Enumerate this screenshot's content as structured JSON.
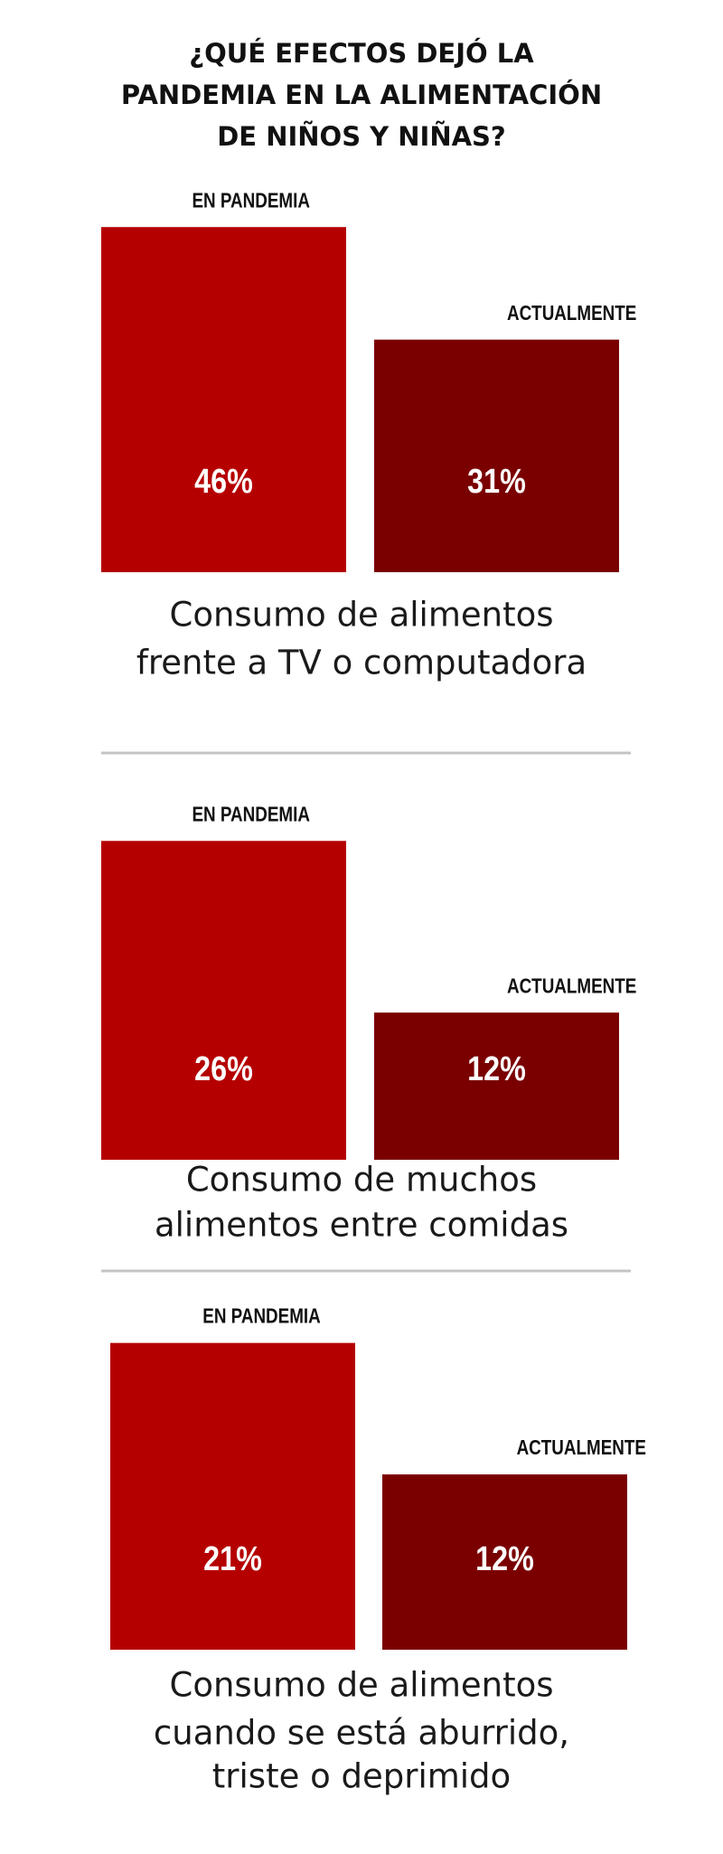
{
  "title": [
    "¿QUÉ EFECTOS DEJÓ LA",
    "PANDEMIA EN LA ALIMENTACIÓN",
    "DE NIÑOS Y NIÑAS?"
  ],
  "chart_data": [
    {
      "type": "bar",
      "categories": [
        "EN PANDEMIA",
        "ACTUALMENTE"
      ],
      "values": [
        46,
        31
      ],
      "value_labels": [
        "46%",
        "31%"
      ],
      "colors": [
        "#b50000",
        "#7a0000"
      ],
      "ylim": [
        0,
        50
      ],
      "caption": [
        "Consumo de alimentos",
        "frente a TV o computadora"
      ]
    },
    {
      "type": "bar",
      "categories": [
        "EN PANDEMIA",
        "ACTUALMENTE"
      ],
      "values": [
        26,
        12
      ],
      "value_labels": [
        "26%",
        "12%"
      ],
      "colors": [
        "#b50000",
        "#7a0000"
      ],
      "ylim": [
        0,
        30
      ],
      "caption": [
        "Consumo de muchos",
        "alimentos entre comidas"
      ]
    },
    {
      "type": "bar",
      "categories": [
        "EN PANDEMIA",
        "ACTUALMENTE"
      ],
      "values": [
        21,
        12
      ],
      "value_labels": [
        "21%",
        "12%"
      ],
      "colors": [
        "#b50000",
        "#7a0000"
      ],
      "ylim": [
        0,
        25
      ],
      "caption": [
        "Consumo de alimentos",
        "cuando se está aburrido,",
        "triste o deprimido"
      ]
    }
  ]
}
